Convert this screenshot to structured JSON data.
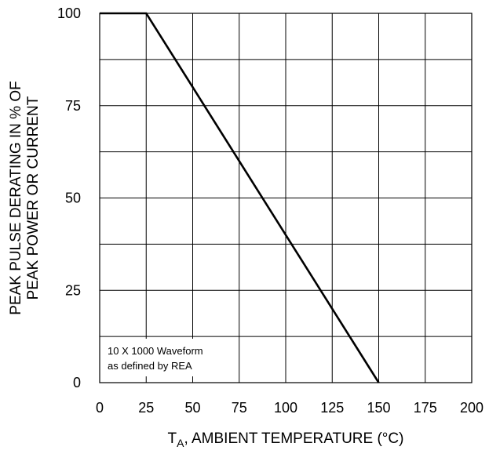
{
  "chart_data": {
    "type": "line",
    "title": "",
    "xlabel_main": "T",
    "xlabel_sub": "A",
    "xlabel_rest": ", AMBIENT TEMPERATURE (°C)",
    "ylabel_line1": "PEAK PULSE DERATING IN % OF",
    "ylabel_line2": "PEAK POWER OR CURRENT",
    "xlim": [
      0,
      200
    ],
    "ylim": [
      0,
      100
    ],
    "x_ticks": [
      0,
      25,
      50,
      75,
      100,
      125,
      150,
      175,
      200
    ],
    "y_ticks": [
      0,
      25,
      50,
      75,
      100
    ],
    "x_tick_labels": [
      "0",
      "25",
      "50",
      "75",
      "100",
      "125",
      "150",
      "175",
      "200"
    ],
    "y_tick_labels": [
      "0",
      "25",
      "50",
      "75",
      "100"
    ],
    "grid": true,
    "series": [
      {
        "x": [
          0,
          25,
          150
        ],
        "y": [
          100,
          100,
          0
        ]
      }
    ],
    "annotation": {
      "line1": "10 X 1000 Waveform",
      "line2": "as defined by REA"
    }
  }
}
